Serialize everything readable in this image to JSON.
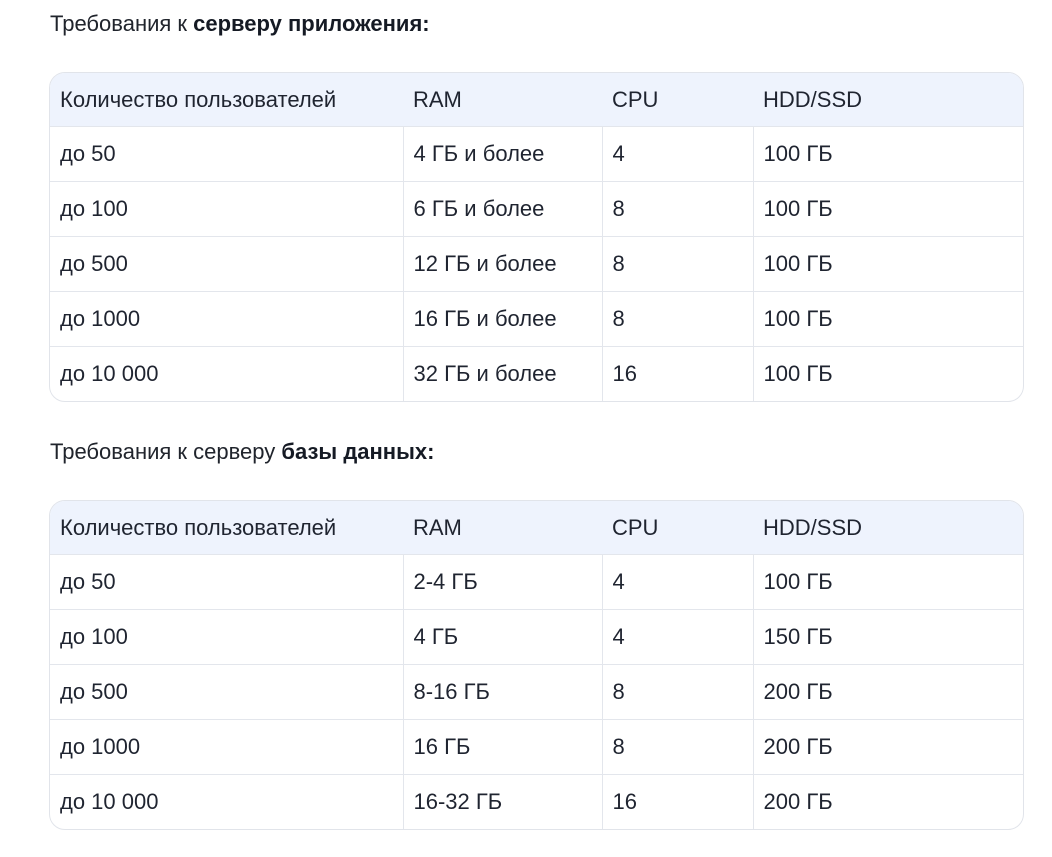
{
  "app_server": {
    "title_prefix": "Требования к ",
    "title_bold": "серверу приложения:",
    "headers": [
      "Количество пользователей",
      "RAM",
      "CPU",
      "HDD/SSD"
    ],
    "rows": [
      [
        "до 50",
        "4 ГБ и более",
        "4",
        "100 ГБ"
      ],
      [
        "до 100",
        "6 ГБ и более",
        "8",
        "100 ГБ"
      ],
      [
        "до 500",
        "12 ГБ и более",
        "8",
        "100 ГБ"
      ],
      [
        "до 1000",
        "16 ГБ и более",
        "8",
        "100 ГБ"
      ],
      [
        "до 10 000",
        "32 ГБ и более",
        "16",
        "100 ГБ"
      ]
    ]
  },
  "db_server": {
    "title_prefix": "Требования к серверу ",
    "title_bold": "базы данных:",
    "headers": [
      "Количество пользователей",
      "RAM",
      "CPU",
      "HDD/SSD"
    ],
    "rows": [
      [
        "до 50",
        "2-4 ГБ",
        "4",
        "100 ГБ"
      ],
      [
        "до 100",
        "4 ГБ",
        "4",
        "150 ГБ"
      ],
      [
        "до 500",
        "8-16 ГБ",
        "8",
        "200 ГБ"
      ],
      [
        "до 1000",
        "16 ГБ",
        "8",
        "200 ГБ"
      ],
      [
        "до 10 000",
        "16-32 ГБ",
        "16",
        "200 ГБ"
      ]
    ]
  },
  "colors": {
    "header_bg": "#eef3fd",
    "border": "#e3e6ec",
    "text": "#1f2430"
  }
}
